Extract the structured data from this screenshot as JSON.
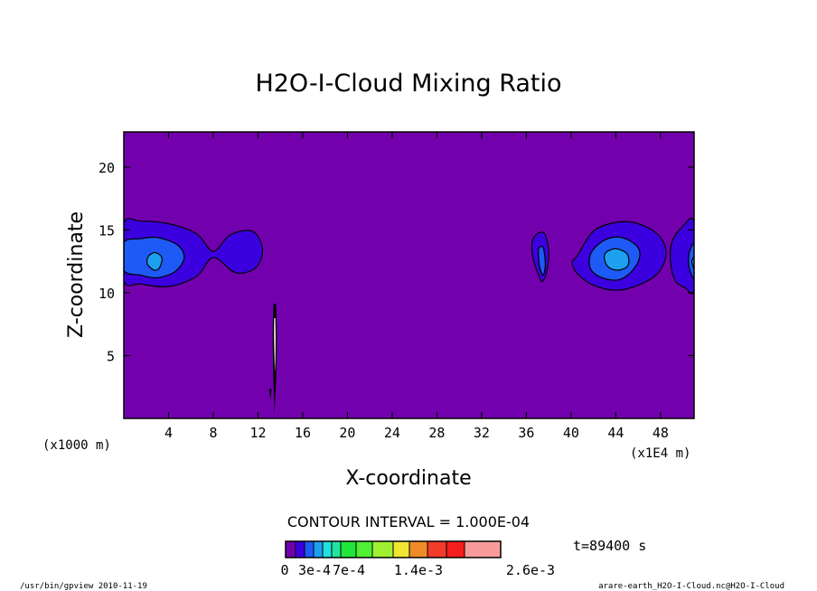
{
  "chart_data": {
    "type": "contour",
    "title": "H2O-I-Cloud Mixing Ratio",
    "xlabel": "X-coordinate",
    "ylabel": "Z-coordinate",
    "x_unit": "(x1000 m)",
    "x_unit_right": "(x1E4 m)",
    "x_ticks": [
      4,
      8,
      12,
      16,
      20,
      24,
      28,
      32,
      36,
      40,
      44,
      48
    ],
    "y_ticks": [
      5,
      10,
      15,
      20
    ],
    "xlim": [
      0,
      51
    ],
    "ylim": [
      0,
      22.8
    ],
    "contour_interval_text": "CONTOUR INTERVAL = 1.000E-04",
    "time_text": "t=89400 s",
    "background_color": "#7300ad",
    "colorbar": {
      "colors": [
        "#7300ad",
        "#3c00e0",
        "#1e5af5",
        "#1ea0f0",
        "#20e0e0",
        "#20e6a0",
        "#20e63c",
        "#50f032",
        "#a0f032",
        "#f0e632",
        "#f08c28",
        "#f03c28",
        "#f51e1e",
        "#fa9b9b"
      ],
      "labels": [
        "0",
        "3e-4",
        "7e-4",
        "1.4e-3",
        "2.6e-3"
      ]
    },
    "features": [
      {
        "level": 1,
        "x": [
          0,
          1.5,
          4,
          6.5,
          8,
          9.5,
          11.5,
          12.4,
          11.8,
          10,
          8,
          6.5,
          4,
          1.5,
          0
        ],
        "z": [
          15.5,
          15.7,
          15.5,
          14.7,
          13.3,
          14.6,
          14.9,
          13.5,
          12.0,
          11.6,
          12.8,
          11.3,
          10.5,
          10.7,
          11.0
        ]
      },
      {
        "level": 2,
        "x": [
          0,
          1.5,
          3.0,
          4.8,
          5.4,
          4.6,
          3.0,
          1.5,
          0
        ],
        "z": [
          14.0,
          14.3,
          14.4,
          13.8,
          12.8,
          11.7,
          11.2,
          11.4,
          11.8
        ]
      },
      {
        "level": 3,
        "x": [
          2.2,
          2.8,
          3.4,
          3.2,
          2.7,
          2.1
        ],
        "z": [
          12.9,
          13.2,
          12.8,
          12.0,
          11.8,
          12.3
        ]
      },
      {
        "level": 1,
        "x": [
          36.6,
          37.2,
          37.7,
          38.0,
          37.8,
          37.4,
          37.1,
          36.7,
          36.5
        ],
        "z": [
          14.3,
          14.8,
          14.6,
          13.2,
          11.6,
          10.9,
          11.4,
          12.4,
          13.4
        ]
      },
      {
        "level": 2,
        "x": [
          37.1,
          37.5,
          37.7,
          37.5,
          37.2,
          37.1
        ],
        "z": [
          13.5,
          13.6,
          12.3,
          11.4,
          12.0,
          12.8
        ]
      },
      {
        "level": 1,
        "x": [
          40.6,
          42.0,
          44.0,
          46.0,
          47.8,
          48.5,
          47.8,
          46.0,
          44.0,
          42.0,
          40.6,
          40.1
        ],
        "z": [
          13.0,
          14.9,
          15.6,
          15.5,
          14.6,
          13.2,
          11.6,
          10.6,
          10.2,
          10.6,
          11.5,
          12.4
        ]
      },
      {
        "level": 2,
        "x": [
          41.8,
          43.0,
          44.5,
          45.9,
          46.1,
          45.2,
          44.0,
          42.5,
          41.7
        ],
        "z": [
          13.2,
          14.2,
          14.4,
          13.7,
          12.7,
          11.5,
          11.0,
          11.3,
          12.0
        ]
      },
      {
        "level": 3,
        "x": [
          43.1,
          44.0,
          45.0,
          45.1,
          44.3,
          43.4,
          43.0
        ],
        "z": [
          13.2,
          13.5,
          13.1,
          12.2,
          11.8,
          12.0,
          12.6
        ]
      },
      {
        "level": 1,
        "x": [
          51,
          49.9,
          49.0,
          48.9,
          49.3,
          50.2,
          51
        ],
        "z": [
          15.6,
          15.2,
          14.0,
          12.4,
          11.0,
          10.4,
          10.3
        ]
      },
      {
        "level": 2,
        "x": [
          51,
          50.6,
          50.5,
          50.7,
          51
        ],
        "z": [
          13.8,
          13.3,
          12.4,
          11.6,
          11.3
        ]
      },
      {
        "level": 3,
        "x": [
          51,
          50.8,
          50.9,
          51
        ],
        "z": [
          12.8,
          12.5,
          12.1,
          11.9
        ]
      }
    ]
  },
  "footer": {
    "left": "/usr/bin/gpview  2010-11-19",
    "right": "arare-earth_H2O-I-Cloud.nc@H2O-I-Cloud"
  }
}
